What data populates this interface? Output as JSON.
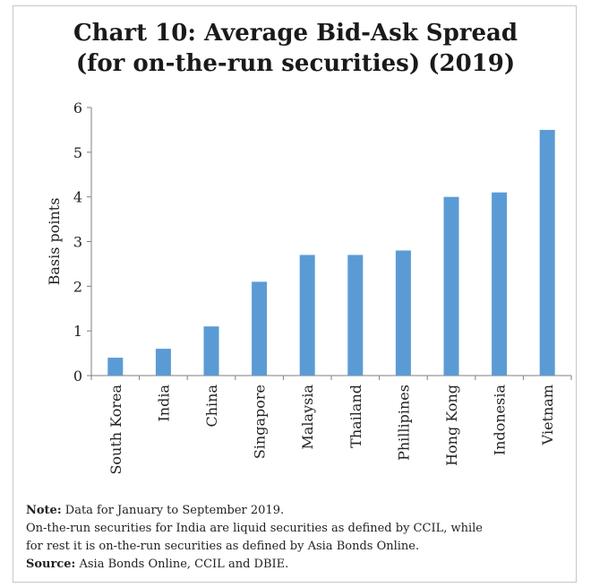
{
  "chart_data": {
    "type": "bar",
    "title": "Chart 10: Average Bid-Ask Spread",
    "subtitle": "(for on-the-run securities) (2019)",
    "xlabel": "",
    "ylabel": "Basis points",
    "ylim": [
      0,
      6
    ],
    "yticks": [
      "0",
      "1",
      "2",
      "3",
      "4",
      "5",
      "6"
    ],
    "categories": [
      "South Korea",
      "India",
      "China",
      "Singapore",
      "Malaysia",
      "Thailand",
      "Phillipines",
      "Hong Kong",
      "Indonesia",
      "Vietnam"
    ],
    "values": [
      0.4,
      0.6,
      1.1,
      2.1,
      2.7,
      2.7,
      2.8,
      4.0,
      4.1,
      5.5
    ],
    "bar_color": "#5b9bd5",
    "grid": false,
    "legend": "none"
  },
  "notes": {
    "note_label": "Note:",
    "note_text": " Data for January to September 2019.",
    "note_line2": "On-the-run securities for India are liquid securities as defined by CCIL, while",
    "note_line3": "for rest it is on-the-run securities as defined by Asia Bonds Online.",
    "source_label": "Source:",
    "source_text": " Asia Bonds Online, CCIL and DBIE."
  }
}
